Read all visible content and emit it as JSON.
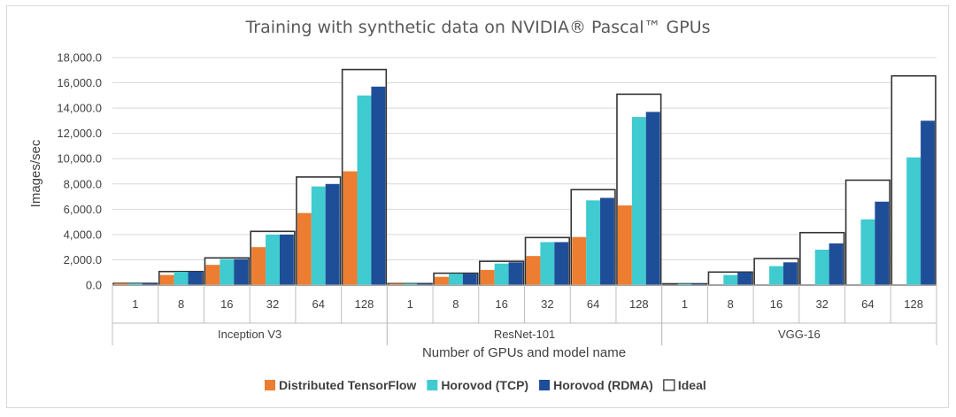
{
  "chart_data": {
    "type": "bar",
    "title": "Training with synthetic data on NVIDIA® Pascal™ GPUs",
    "xlabel": "Number of GPUs and model name",
    "ylabel": "Images/sec",
    "ylim": [
      0,
      18000
    ],
    "yticks": [
      "0.0",
      "2,000.0",
      "4,000.0",
      "6,000.0",
      "8,000.0",
      "10,000.0",
      "12,000.0",
      "14,000.0",
      "16,000.0",
      "18,000.0"
    ],
    "ytick_values": [
      0,
      2000,
      4000,
      6000,
      8000,
      10000,
      12000,
      14000,
      16000,
      18000
    ],
    "gpu_counts": [
      "1",
      "8",
      "16",
      "32",
      "64",
      "128"
    ],
    "series_names": [
      "Distributed TensorFlow",
      "Horovod (TCP)",
      "Horovod (RDMA)",
      "Ideal"
    ],
    "colors": {
      "Distributed TensorFlow": "#ed7d31",
      "Horovod (TCP)": "#3fcbcf",
      "Horovod (RDMA)": "#1f4e99",
      "Ideal": "#ffffff",
      "ideal_border": "#333333",
      "grid": "#d9d9d9",
      "axis": "#bfbfbf"
    },
    "legend_position": "bottom",
    "groups": [
      {
        "model": "Inception V3",
        "series": {
          "Distributed TensorFlow": [
            130,
            800,
            1600,
            3000,
            5700,
            9000
          ],
          "Horovod (TCP)": [
            130,
            1050,
            2050,
            4000,
            7800,
            15000
          ],
          "Horovod (RDMA)": [
            130,
            1050,
            2050,
            4000,
            8000,
            15700
          ],
          "Ideal": [
            133,
            1070,
            2150,
            4250,
            8550,
            17050
          ]
        }
      },
      {
        "model": "ResNet-101",
        "series": {
          "Distributed TensorFlow": [
            115,
            650,
            1200,
            2300,
            3800,
            6300
          ],
          "Horovod (TCP)": [
            115,
            900,
            1700,
            3400,
            6700,
            13300
          ],
          "Horovod (RDMA)": [
            115,
            900,
            1800,
            3400,
            6900,
            13700
          ],
          "Ideal": [
            118,
            940,
            1880,
            3760,
            7550,
            15100
          ]
        }
      },
      {
        "model": "VGG-16",
        "series": {
          "Distributed TensorFlow": [
            0,
            0,
            0,
            0,
            0,
            0
          ],
          "Horovod (TCP)": [
            100,
            800,
            1500,
            2800,
            5200,
            10100
          ],
          "Horovod (RDMA)": [
            100,
            1000,
            1800,
            3300,
            6600,
            13000
          ],
          "Ideal": [
            104,
            1030,
            2100,
            4150,
            8300,
            16550
          ]
        }
      }
    ]
  }
}
